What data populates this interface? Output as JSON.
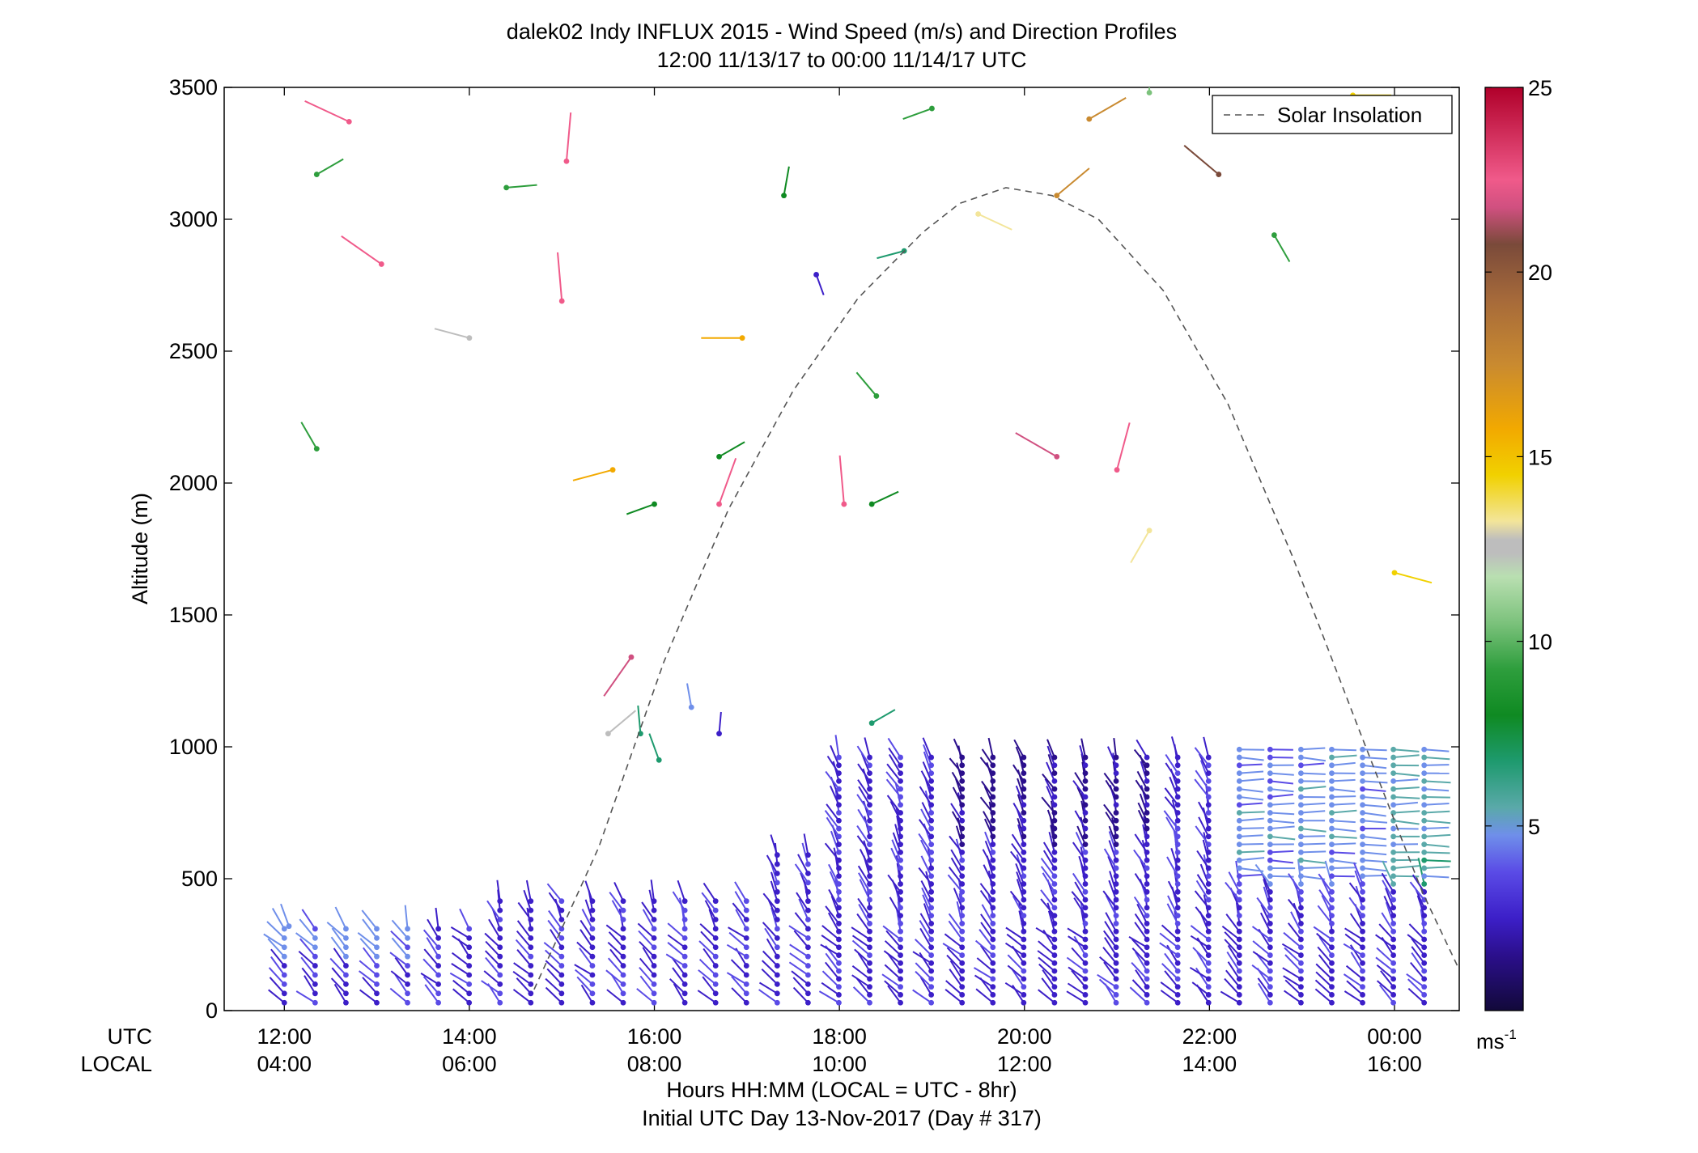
{
  "chart_data": {
    "type": "scatter",
    "title": "dalek02 Indy INFLUX 2015 - Wind Speed (m/s) and Direction Profiles",
    "subtitle": "12:00 11/13/17 to 00:00 11/14/17  UTC",
    "ylabel": "Altitude (m)",
    "xlabel": "Hours HH:MM  (LOCAL = UTC - 8hr)",
    "xlabel2": "Initial UTC Day 13-Nov-2017 (Day # 317)",
    "xrow_label_utc": "UTC",
    "xrow_label_local": "LOCAL",
    "colorbar_unit": "ms",
    "colorbar_unit_sup": "-1",
    "xlim": [
      11.35,
      24.7
    ],
    "ylim": [
      0,
      3500
    ],
    "yticks": [
      0,
      500,
      1000,
      1500,
      2000,
      2500,
      3000,
      3500
    ],
    "ytick_labels": [
      "0",
      "500",
      "1000",
      "1500",
      "2000",
      "2500",
      "3000",
      "3500"
    ],
    "xticks": [
      12,
      14,
      16,
      18,
      20,
      22,
      24
    ],
    "xtick_labels_utc": [
      "12:00",
      "14:00",
      "16:00",
      "18:00",
      "20:00",
      "22:00",
      "00:00"
    ],
    "xtick_labels_local": [
      "04:00",
      "06:00",
      "08:00",
      "10:00",
      "12:00",
      "14:00",
      "16:00"
    ],
    "colorbar_range": [
      0,
      25
    ],
    "colorbar_ticks": [
      5,
      10,
      15,
      20,
      25
    ],
    "colorbar_tick_labels": [
      "5",
      "10",
      "15",
      "20",
      "25"
    ],
    "legend": {
      "label": "Solar Insolation",
      "position": "top-right"
    },
    "series": [
      {
        "name": "Solar Insolation",
        "style": "dashed",
        "color": "#555555",
        "x": [
          14.7,
          15.4,
          16.1,
          16.8,
          17.5,
          18.2,
          18.9,
          19.3,
          19.8,
          20.3,
          20.8,
          21.5,
          22.2,
          22.9,
          23.6,
          24.3,
          24.68
        ],
        "y": [
          80,
          620,
          1320,
          1900,
          2350,
          2700,
          2950,
          3060,
          3120,
          3090,
          3000,
          2730,
          2300,
          1720,
          1080,
          450,
          170
        ]
      }
    ],
    "colormap": [
      "#12093a",
      "#2b0f8c",
      "#3c1fc8",
      "#5a4be6",
      "#6f8fea",
      "#5aa9a9",
      "#1e9a6e",
      "#0f8a22",
      "#2e9e3d",
      "#7cc27c",
      "#b9dfb1",
      "#bdbdbd",
      "#f3e59a",
      "#f1d100",
      "#f2a900",
      "#c98a30",
      "#a66a3a",
      "#7a4a3a",
      "#d05080",
      "#f05a8a",
      "#b0002a"
    ]
  }
}
